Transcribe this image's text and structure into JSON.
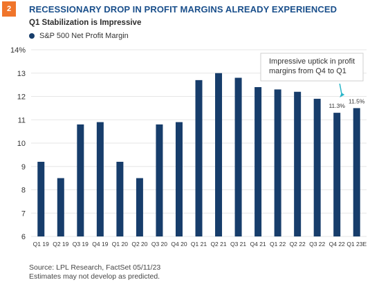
{
  "badge": "2",
  "title": "RECESSIONARY DROP IN PROFIT MARGINS ALREADY EXPERIENCED",
  "subtitle": "Q1 Stabilization is Impressive",
  "colors": {
    "bar": "#173d6b",
    "title": "#1a4f8b",
    "badge": "#f0752b",
    "arrow": "#2bb6c9",
    "grid": "#e6e6e6"
  },
  "chart_data": {
    "type": "bar",
    "title": "RECESSIONARY DROP IN PROFIT MARGINS ALREADY EXPERIENCED",
    "subtitle": "Q1 Stabilization is Impressive",
    "xlabel": "",
    "ylabel": "",
    "ylim": [
      6,
      14
    ],
    "yticks": [
      "6",
      "7",
      "8",
      "9",
      "10",
      "11",
      "12",
      "13",
      "14%"
    ],
    "grid": true,
    "legend_position": "top-left",
    "categories": [
      "Q1 19",
      "Q2 19",
      "Q3 19",
      "Q4 19",
      "Q1 20",
      "Q2 20",
      "Q3 20",
      "Q4 20",
      "Q1 21",
      "Q2 21",
      "Q3 21",
      "Q4 21",
      "Q1 22",
      "Q2 22",
      "Q3 22",
      "Q4 22",
      "Q1 23E"
    ],
    "series": [
      {
        "name": "S&P 500 Net Profit Margin",
        "values": [
          9.2,
          8.5,
          10.8,
          10.9,
          9.2,
          8.5,
          10.8,
          10.9,
          12.7,
          13.0,
          12.8,
          12.4,
          12.3,
          12.2,
          11.9,
          11.3,
          11.5
        ]
      }
    ],
    "data_labels": [
      {
        "index": 15,
        "text": "11.3%"
      },
      {
        "index": 16,
        "text": "11.5%"
      }
    ],
    "annotation": {
      "lines": [
        "Impressive uptick in profit",
        "margins from Q4 to Q1"
      ]
    }
  },
  "source": {
    "line1": "Source: LPL Research, FactSet  05/11/23",
    "line2": "Estimates may not develop as predicted."
  }
}
